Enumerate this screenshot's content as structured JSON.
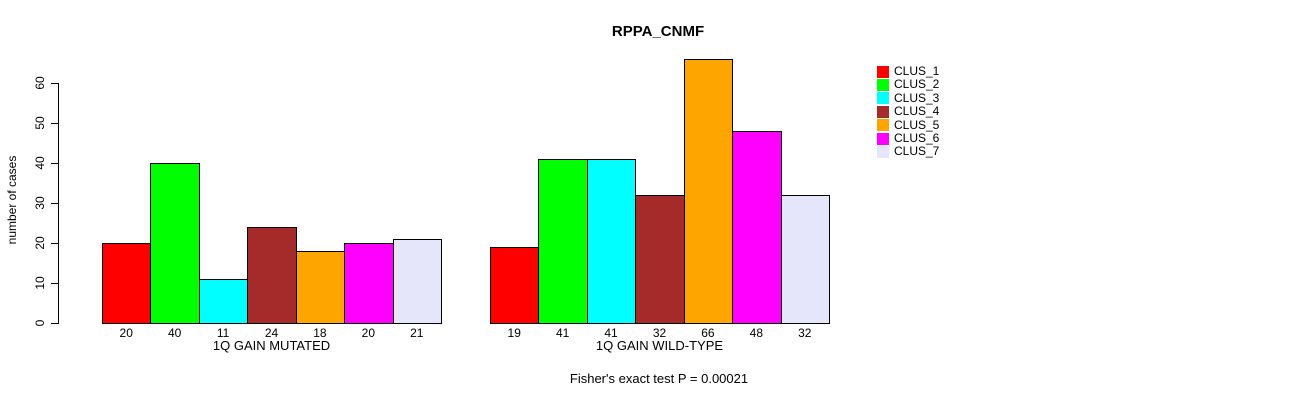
{
  "title": "RPPA_CNMF",
  "footnote": "Fisher's exact test P = 0.00021",
  "chart_data": {
    "type": "bar",
    "title": "RPPA_CNMF",
    "xlabel": "",
    "ylabel": "number of cases",
    "ylim": [
      0,
      66
    ],
    "yticks": [
      0,
      10,
      20,
      30,
      40,
      50,
      60
    ],
    "grid": false,
    "legend_position": "right",
    "series": [
      {
        "name": "CLUS_1",
        "color": "#FF0000"
      },
      {
        "name": "CLUS_2",
        "color": "#00FF00"
      },
      {
        "name": "CLUS_3",
        "color": "#00FFFF"
      },
      {
        "name": "CLUS_4",
        "color": "#A52A2A"
      },
      {
        "name": "CLUS_5",
        "color": "#FFA500"
      },
      {
        "name": "CLUS_6",
        "color": "#FF00FF"
      },
      {
        "name": "CLUS_7",
        "color": "#E6E6FA"
      }
    ],
    "groups": [
      {
        "label": "1Q GAIN MUTATED",
        "values": [
          20,
          40,
          11,
          24,
          18,
          20,
          21
        ],
        "value_labels": [
          "20",
          "40",
          "11",
          "24",
          "18",
          "20",
          "21"
        ]
      },
      {
        "label": "1Q GAIN WILD-TYPE",
        "values": [
          19,
          41,
          41,
          32,
          66,
          48,
          32
        ],
        "value_labels": [
          "19",
          "41",
          "41",
          "32",
          "66",
          "48",
          "32"
        ]
      }
    ],
    "footnote": "Fisher's exact test P = 0.00021"
  },
  "legend": {
    "items": [
      {
        "label": "CLUS_1",
        "color": "#FF0000"
      },
      {
        "label": "CLUS_2",
        "color": "#00FF00"
      },
      {
        "label": "CLUS_3",
        "color": "#00FFFF"
      },
      {
        "label": "CLUS_4",
        "color": "#A52A2A"
      },
      {
        "label": "CLUS_5",
        "color": "#FFA500"
      },
      {
        "label": "CLUS_6",
        "color": "#FF00FF"
      },
      {
        "label": "CLUS_7",
        "color": "#E6E6FA"
      }
    ]
  }
}
